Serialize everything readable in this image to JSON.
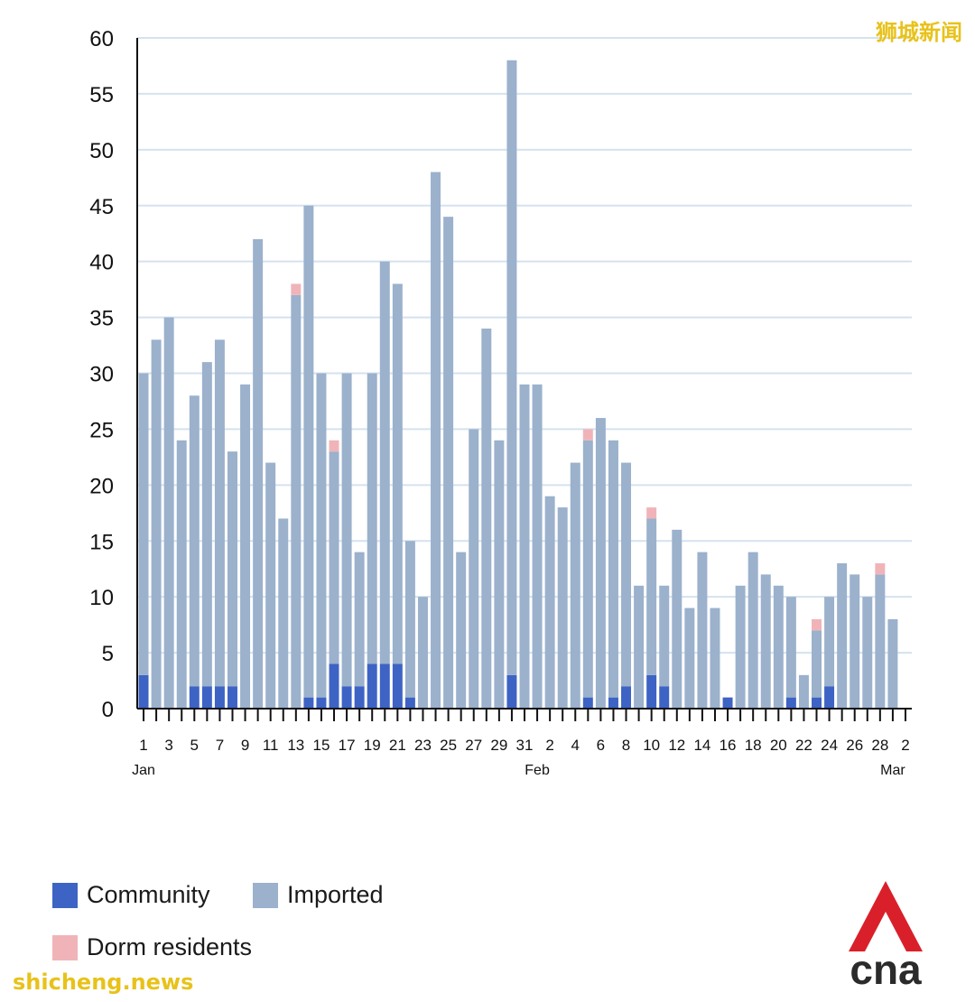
{
  "chart_data": {
    "type": "bar",
    "stacked": true,
    "title": "",
    "xlabel": "",
    "ylabel": "",
    "ylim": [
      0,
      60
    ],
    "yticks": [
      0,
      5,
      10,
      15,
      20,
      25,
      30,
      35,
      40,
      45,
      50,
      55,
      60
    ],
    "grid": true,
    "legend_position": "bottom-left",
    "categories": [
      "1",
      "2",
      "3",
      "4",
      "5",
      "6",
      "7",
      "8",
      "9",
      "10",
      "11",
      "12",
      "13",
      "14",
      "15",
      "16",
      "17",
      "18",
      "19",
      "20",
      "21",
      "22",
      "23",
      "24",
      "25",
      "26",
      "27",
      "28",
      "29",
      "30",
      "31",
      "1",
      "2",
      "3",
      "4",
      "5",
      "6",
      "7",
      "8",
      "9",
      "10",
      "11",
      "12",
      "13",
      "14",
      "15",
      "16",
      "17",
      "18",
      "19",
      "20",
      "21",
      "22",
      "23",
      "24",
      "25",
      "26",
      "27",
      "28",
      "1",
      "2"
    ],
    "month_labels": [
      {
        "label": "Jan",
        "index": 0
      },
      {
        "label": "Feb",
        "index": 31
      },
      {
        "label": "Mar",
        "index": 59
      }
    ],
    "series": [
      {
        "name": "Community",
        "color": "#3d63c4",
        "values": [
          3,
          0,
          0,
          0,
          2,
          2,
          2,
          2,
          0,
          0,
          0,
          0,
          0,
          1,
          1,
          4,
          2,
          2,
          4,
          4,
          4,
          1,
          0,
          0,
          0,
          0,
          0,
          0,
          0,
          3,
          0,
          0,
          0,
          0,
          0,
          1,
          0,
          1,
          2,
          0,
          3,
          2,
          0,
          0,
          0,
          0,
          1,
          0,
          0,
          0,
          0,
          1,
          0,
          1,
          2,
          0,
          0,
          0,
          0,
          0,
          0
        ]
      },
      {
        "name": "Imported",
        "color": "#9bb1cc",
        "values": [
          27,
          33,
          35,
          24,
          26,
          29,
          31,
          21,
          29,
          42,
          22,
          17,
          37,
          44,
          29,
          19,
          28,
          12,
          26,
          36,
          34,
          14,
          10,
          48,
          44,
          14,
          25,
          34,
          24,
          55,
          29,
          29,
          19,
          18,
          22,
          23,
          26,
          23,
          20,
          11,
          14,
          9,
          16,
          9,
          14,
          9,
          0,
          11,
          14,
          12,
          11,
          9,
          3,
          6,
          8,
          13,
          12,
          10,
          12,
          8,
          0
        ]
      },
      {
        "name": "Dorm residents",
        "color": "#f0b4b8",
        "values": [
          0,
          0,
          0,
          0,
          0,
          0,
          0,
          0,
          0,
          0,
          0,
          0,
          1,
          0,
          0,
          1,
          0,
          0,
          0,
          0,
          0,
          0,
          0,
          0,
          0,
          0,
          0,
          0,
          0,
          0,
          0,
          0,
          0,
          0,
          0,
          1,
          0,
          0,
          0,
          0,
          1,
          0,
          0,
          0,
          0,
          0,
          0,
          0,
          0,
          0,
          0,
          0,
          0,
          1,
          0,
          0,
          0,
          0,
          1,
          0,
          0
        ]
      }
    ]
  },
  "legend": {
    "community_label": "Community",
    "imported_label": "Imported",
    "dorm_label": "Dorm residents"
  },
  "watermarks": {
    "top_right": "狮城新闻",
    "bottom_left": "shicheng.news"
  },
  "logo": {
    "text": "cna",
    "accent_color": "#d9202a",
    "text_color": "#2b2b2b"
  }
}
